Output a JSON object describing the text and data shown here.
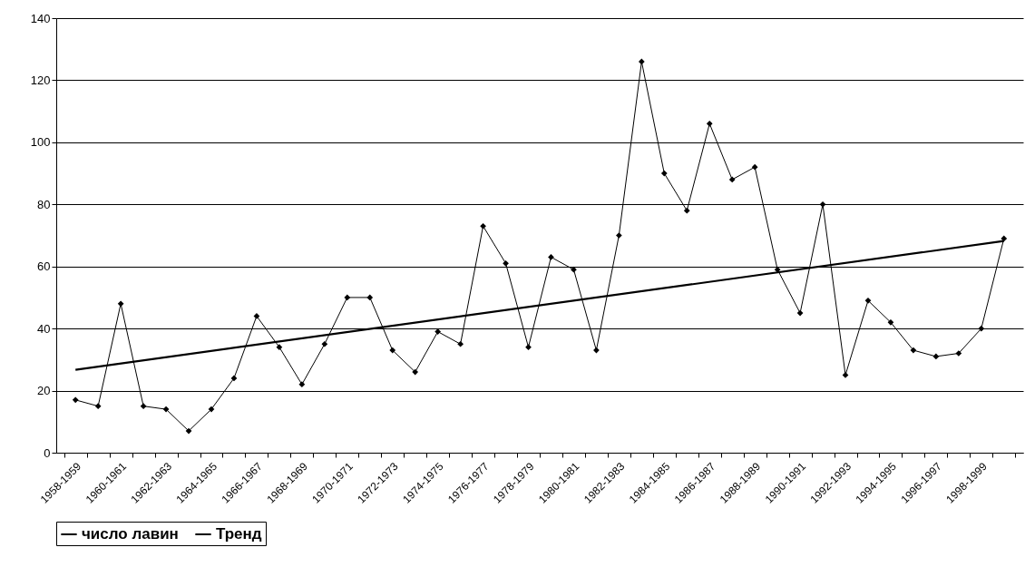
{
  "chart_data": {
    "type": "line",
    "categories": [
      "1958-1959",
      null,
      "1960-1961",
      null,
      "1962-1963",
      null,
      "1964-1965",
      null,
      "1966-1967",
      null,
      "1968-1969",
      null,
      "1970-1971",
      null,
      "1972-1973",
      null,
      "1974-1975",
      null,
      "1976-1977",
      null,
      "1978-1979",
      null,
      "1980-1981",
      null,
      "1982-1983",
      null,
      "1984-1985",
      null,
      "1986-1987",
      null,
      "1988-1989",
      null,
      "1990-1991",
      null,
      "1992-1993",
      null,
      "1994-1995",
      null,
      "1996-1997",
      null,
      "1998-1999",
      null
    ],
    "series": [
      {
        "name": "число лавин",
        "color": "#000000",
        "marker": "diamond",
        "values": [
          17,
          15,
          48,
          15,
          14,
          7,
          14,
          24,
          44,
          34,
          22,
          35,
          50,
          50,
          33,
          26,
          39,
          35,
          73,
          61,
          34,
          63,
          59,
          33,
          70,
          126,
          90,
          78,
          106,
          88,
          92,
          59,
          45,
          80,
          25,
          49,
          42,
          33,
          31,
          32,
          40,
          69
        ]
      },
      {
        "name": "Тренд",
        "color": "#000000",
        "marker": "none",
        "values": [
          26.7,
          null,
          null,
          null,
          null,
          null,
          null,
          null,
          null,
          null,
          null,
          null,
          null,
          null,
          null,
          null,
          null,
          null,
          null,
          null,
          null,
          null,
          null,
          null,
          null,
          null,
          null,
          null,
          null,
          null,
          null,
          null,
          null,
          null,
          null,
          null,
          null,
          null,
          null,
          null,
          null,
          68.2
        ]
      }
    ],
    "ylim": [
      0,
      140
    ],
    "yticks": [
      0,
      20,
      40,
      60,
      80,
      100,
      120,
      140
    ],
    "grid": "y",
    "legend": "bottom"
  }
}
